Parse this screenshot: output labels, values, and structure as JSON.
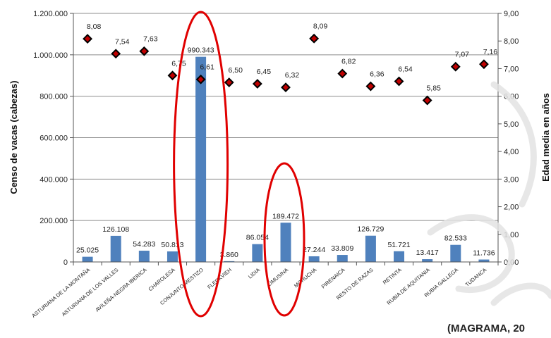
{
  "chart_data": {
    "type": "bar",
    "categories": [
      "ASTURIANA DE LA MONTAÑA",
      "ASTURIANA DE LOS VALLES",
      "AVILEÑA-NEGRA IBERICA",
      "CHAROLESA",
      "CONJUNTO MESTIZO",
      "FLECKVIEH",
      "LIDIA",
      "LIMUSINA",
      "MORUCHA",
      "PIRENAICA",
      "RESTO DE RAZAS",
      "RETINTA",
      "RUBIA DE AQUITANIA",
      "RUBIA GALLEGA",
      "TUDANCA"
    ],
    "series": [
      {
        "type": "bar",
        "axis": "left",
        "color": "#4F81BD",
        "values": [
          25025,
          126108,
          54283,
          50813,
          990343,
          3860,
          86054,
          189472,
          27244,
          33809,
          126729,
          51721,
          13417,
          82533,
          11736
        ],
        "labels": [
          "25.025",
          "126.108",
          "54.283",
          "50.813",
          "990.343",
          "3.860",
          "86.054",
          "189.472",
          "27.244",
          "33.809",
          "126.729",
          "51.721",
          "13.417",
          "82.533",
          "11.736"
        ]
      },
      {
        "type": "scatter",
        "axis": "right",
        "marker": "diamond",
        "color": "#000000",
        "fill": "#C00000",
        "values": [
          8.08,
          7.54,
          7.63,
          6.75,
          6.61,
          6.5,
          6.45,
          6.32,
          8.09,
          6.82,
          6.36,
          6.54,
          5.85,
          7.07,
          7.16
        ],
        "labels": [
          "8,08",
          "7,54",
          "7,63",
          "6,75",
          "6,61",
          "6,50",
          "6,45",
          "6,32",
          "8,09",
          "6,82",
          "6,36",
          "6,54",
          "5,85",
          "7,07",
          "7,16"
        ]
      }
    ],
    "ylabel": "Censo de vacas (cabezas)",
    "y2label": "Edad media en años",
    "ylim": [
      0,
      1200000
    ],
    "y2lim": [
      0,
      9
    ],
    "yticks": [
      "0",
      "200.000",
      "400.000",
      "600.000",
      "800.000",
      "1.000.000",
      "1.200.000"
    ],
    "y2ticks": [
      "0,00",
      "1,00",
      "2,00",
      "3,00",
      "4,00",
      "5,00",
      "6,00",
      "7,00",
      "8,00",
      "9,00"
    ],
    "grid": true,
    "highlighted_categories": [
      "CONJUNTO MESTIZO",
      "LIMUSINA"
    ],
    "highlight_color": "#E00000"
  },
  "source_note": "(MAGRAMA, 20"
}
